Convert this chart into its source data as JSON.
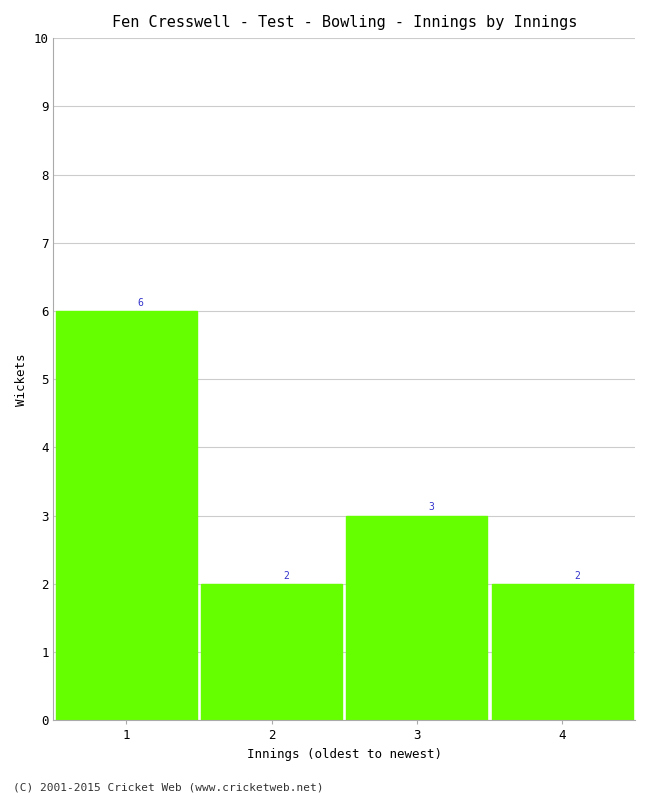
{
  "title": "Fen Cresswell - Test - Bowling - Innings by Innings",
  "xlabel": "Innings (oldest to newest)",
  "ylabel": "Wickets",
  "categories": [
    1,
    2,
    3,
    4
  ],
  "values": [
    6,
    2,
    3,
    2
  ],
  "bar_color": "#66ff00",
  "annotation_color": "#3333cc",
  "ylim": [
    0,
    10
  ],
  "yticks": [
    0,
    1,
    2,
    3,
    4,
    5,
    6,
    7,
    8,
    9,
    10
  ],
  "background_color": "#ffffff",
  "grid_color": "#cccccc",
  "footer": "(C) 2001-2015 Cricket Web (www.cricketweb.net)",
  "title_fontsize": 11,
  "label_fontsize": 9,
  "tick_fontsize": 9,
  "annotation_fontsize": 7,
  "footer_fontsize": 8,
  "bar_width": 0.97,
  "xlim": [
    0.5,
    4.5
  ]
}
